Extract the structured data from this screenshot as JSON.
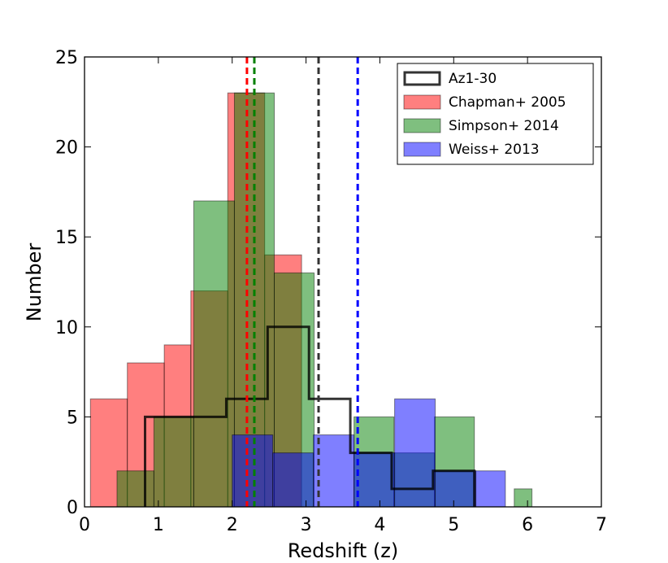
{
  "chart_data": {
    "type": "histogram",
    "title": "",
    "xlabel": "Redshift (z)",
    "ylabel": "Number",
    "xlim": [
      0,
      7
    ],
    "ylim": [
      0,
      25
    ],
    "xticks": [
      0,
      1,
      2,
      3,
      4,
      5,
      6,
      7
    ],
    "yticks": [
      0,
      5,
      10,
      15,
      20,
      25
    ],
    "legend_position": "top-right",
    "series": [
      {
        "name": "Chapman+ 2005",
        "style": "filled",
        "color": "#ff0000",
        "edges": [
          0.08,
          0.58,
          1.08,
          1.44,
          1.94,
          2.44,
          2.94,
          3.1
        ],
        "counts": [
          6,
          8,
          9,
          12,
          23,
          14,
          0
        ]
      },
      {
        "name": "Simpson+ 2014",
        "style": "filled",
        "color": "#008000",
        "edges": [
          0.44,
          0.94,
          1.48,
          2.03,
          2.57,
          3.11,
          3.65,
          4.19,
          4.74,
          5.28,
          5.82,
          6.06
        ],
        "counts": [
          2,
          5,
          17,
          23,
          13,
          0,
          5,
          3,
          5,
          0,
          1
        ]
      },
      {
        "name": "Weiss+ 2013",
        "style": "filled",
        "color": "#0000ff",
        "edges": [
          2.0,
          2.55,
          3.1,
          3.65,
          4.2,
          4.75,
          5.3,
          5.7
        ],
        "counts": [
          4,
          3,
          4,
          3,
          6,
          2,
          2
        ]
      },
      {
        "name": "Az1-30",
        "style": "step",
        "color": "#000000",
        "edges": [
          0.82,
          1.92,
          2.48,
          3.04,
          3.6,
          4.16,
          4.72,
          5.28
        ],
        "counts": [
          5,
          6,
          10,
          6,
          3,
          1,
          2
        ]
      }
    ],
    "legend": [
      {
        "label": "Az1-30",
        "style": "step",
        "color": "#000000"
      },
      {
        "label": "Chapman+ 2005",
        "style": "filled",
        "color": "#ff0000"
      },
      {
        "label": "Simpson+ 2014",
        "style": "filled",
        "color": "#008000"
      },
      {
        "label": "Weiss+ 2013",
        "style": "filled",
        "color": "#0000ff"
      }
    ],
    "median_lines": [
      {
        "series": "Chapman+ 2005",
        "x": 2.2,
        "color": "#ff0000",
        "linestyle": "dashed"
      },
      {
        "series": "Simpson+ 2014",
        "x": 2.3,
        "color": "#008000",
        "linestyle": "dashed"
      },
      {
        "series": "Az1-30",
        "x": 3.17,
        "color": "#333333",
        "linestyle": "dashed"
      },
      {
        "series": "Weiss+ 2013",
        "x": 3.7,
        "color": "#0000ff",
        "linestyle": "dashed"
      }
    ]
  }
}
